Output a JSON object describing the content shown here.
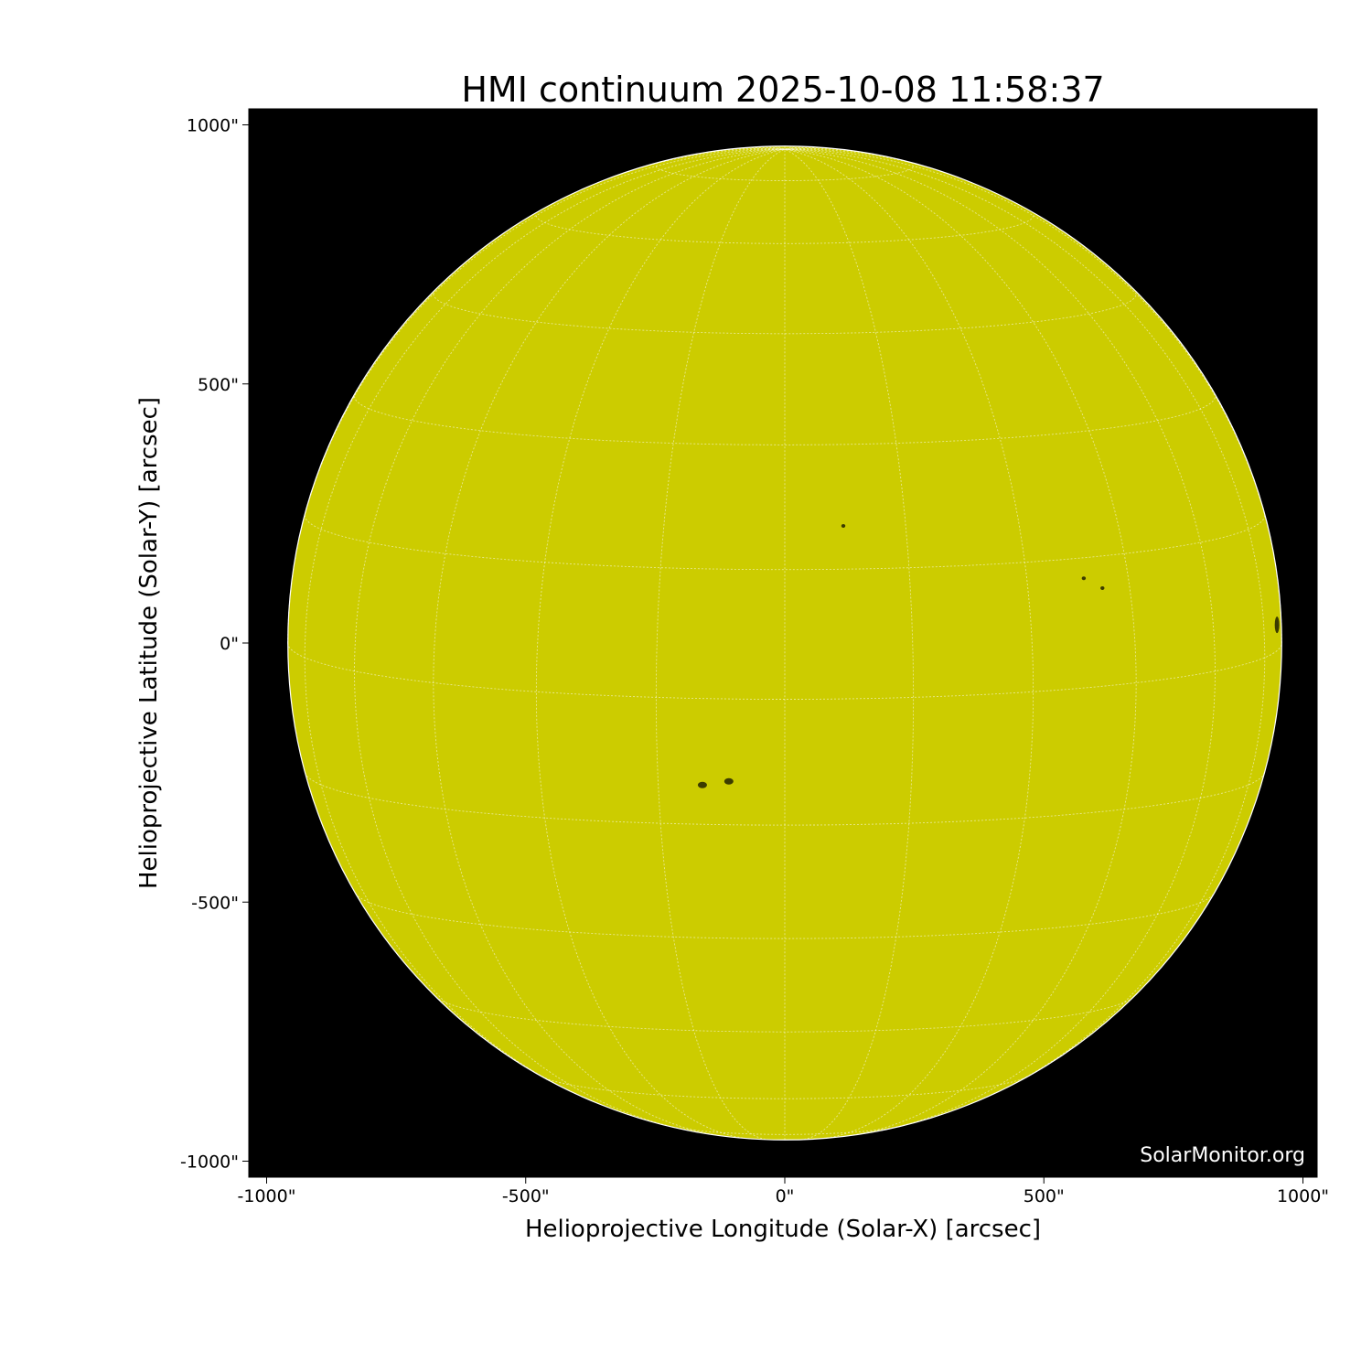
{
  "chart_data": {
    "type": "heatmap",
    "title": "HMI continuum 2025-10-08 11:58:37",
    "xlabel": "Helioprojective Longitude (Solar-X) [arcsec]",
    "ylabel": "Helioprojective Latitude (Solar-Y) [arcsec]",
    "xlim": [
      -1034,
      1027
    ],
    "ylim": [
      -1031,
      1031
    ],
    "x_ticks": [
      {
        "value": -1000,
        "label": "-1000\""
      },
      {
        "value": -500,
        "label": "-500\""
      },
      {
        "value": 0,
        "label": "0\""
      },
      {
        "value": 500,
        "label": "500\""
      },
      {
        "value": 1000,
        "label": "1000\""
      }
    ],
    "y_ticks": [
      {
        "value": 1000,
        "label": "1000\""
      },
      {
        "value": 500,
        "label": "500\""
      },
      {
        "value": 0,
        "label": "0\""
      },
      {
        "value": -500,
        "label": "-500\""
      },
      {
        "value": -1000,
        "label": "-1000\""
      }
    ],
    "solar_radius_arcsec": 959,
    "grid": true,
    "grid_spacing_deg": 15,
    "disk_color": "#cccc00",
    "background_color": "#000000",
    "grid_color": "#ffffff",
    "sunspots": [
      {
        "x": -159,
        "y": -274
      },
      {
        "x": -108,
        "y": -267
      },
      {
        "x": 113,
        "y": 226
      },
      {
        "x": 577,
        "y": 125
      },
      {
        "x": 613,
        "y": 106
      },
      {
        "x": 950,
        "y": 35
      }
    ],
    "watermark": "SolarMonitor.org"
  }
}
